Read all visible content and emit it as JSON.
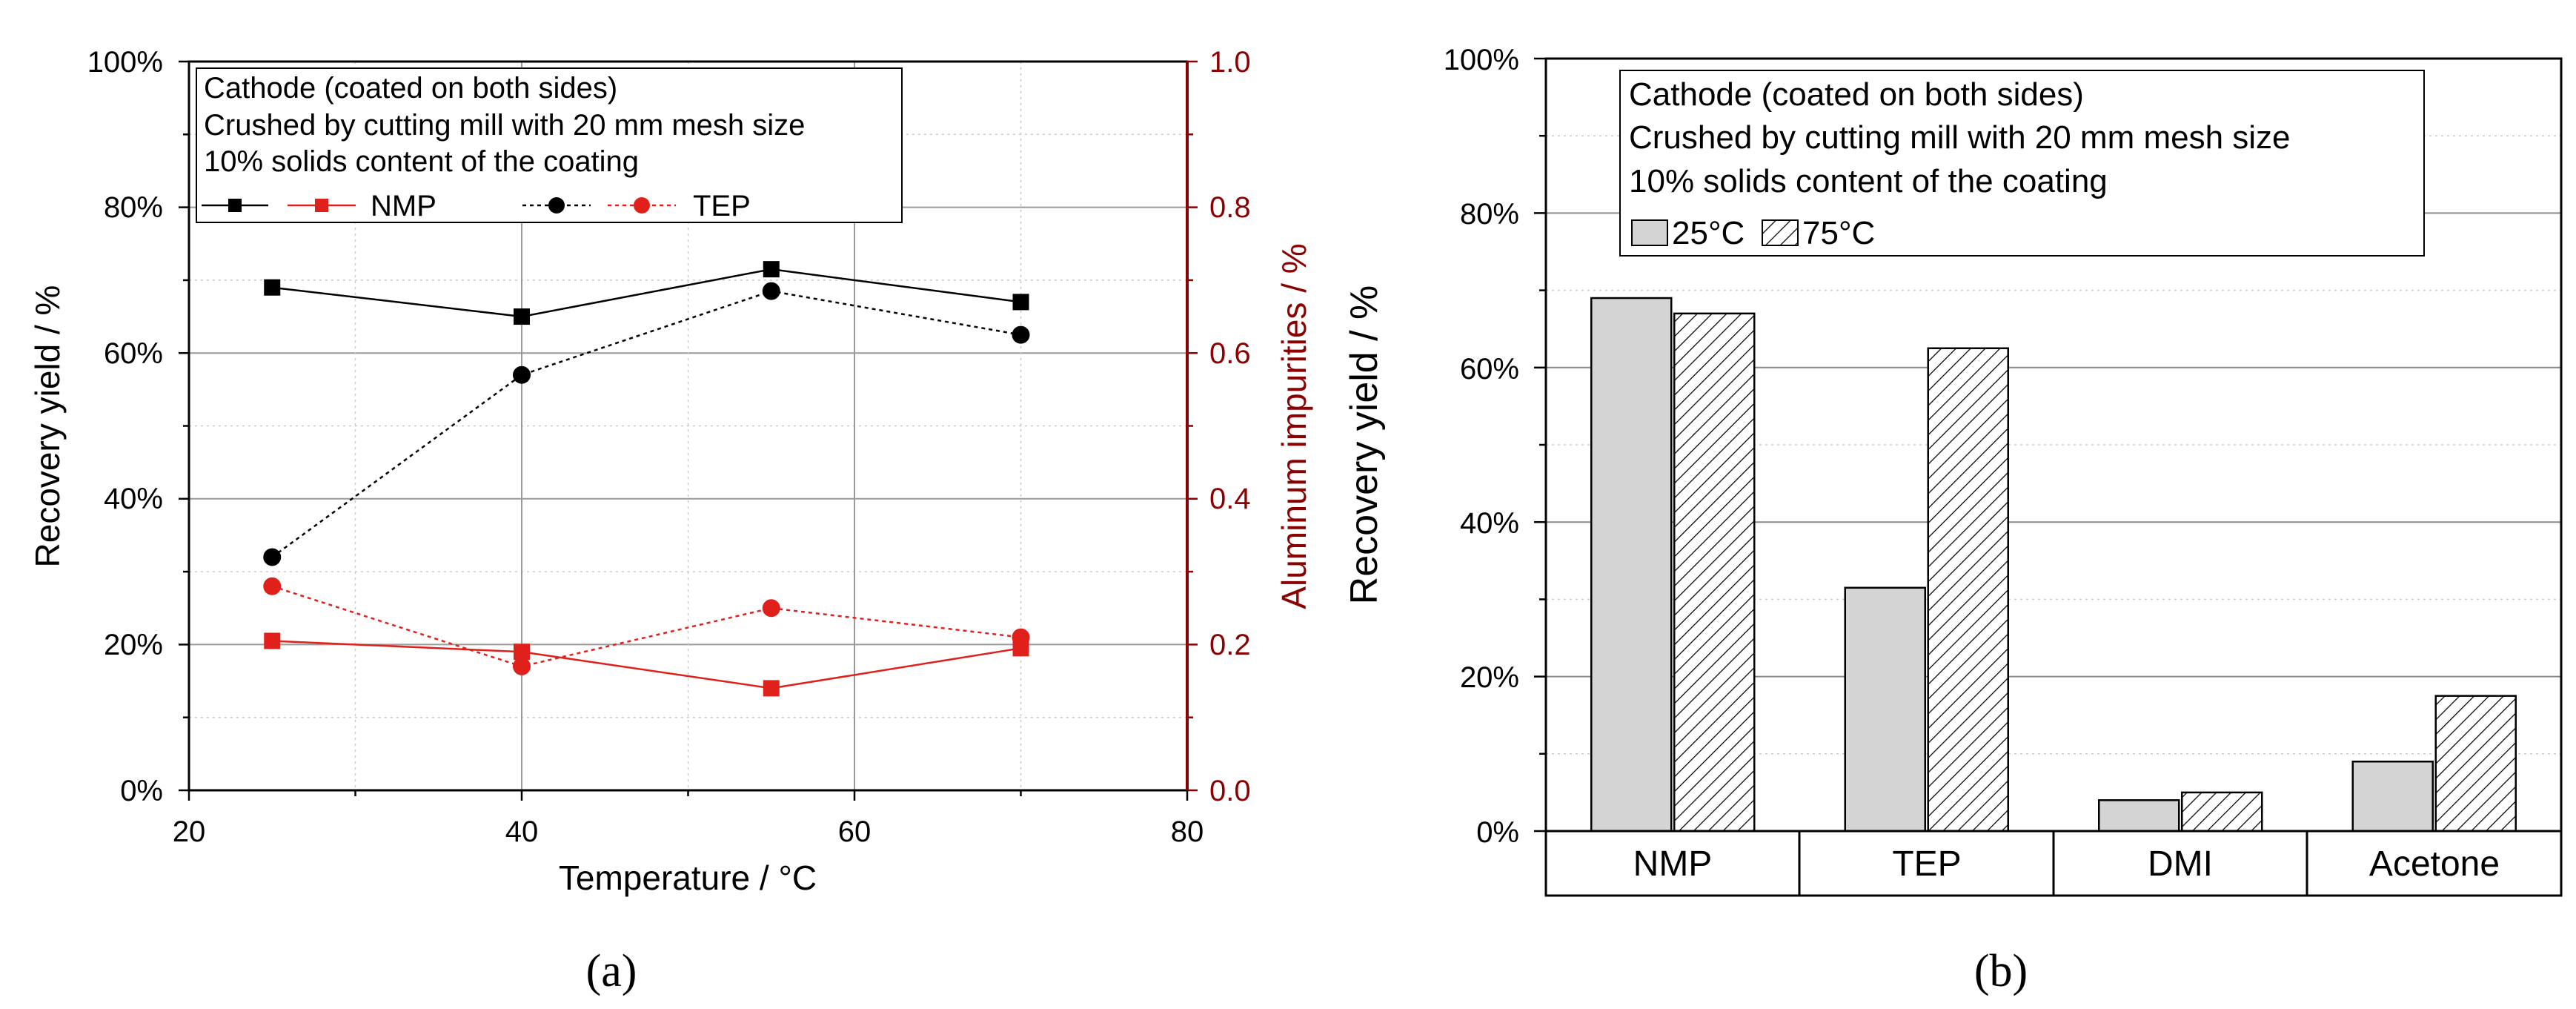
{
  "chart_data": [
    {
      "panel": "a",
      "type": "line",
      "panel_label": "(a)",
      "xlabel": "Temperature / °C",
      "ylabel": "Recovery yield / %",
      "ylabel_right": "Aluminum impurities / %",
      "xlim": [
        20,
        80
      ],
      "ylim": [
        0,
        100
      ],
      "ylim_right": [
        0,
        1.0
      ],
      "x_ticks": [
        "20",
        "40",
        "60",
        "80"
      ],
      "y_ticks": [
        "0%",
        "20%",
        "40%",
        "60%",
        "80%",
        "100%"
      ],
      "y_right_ticks": [
        "0.0",
        "0.2",
        "0.4",
        "0.6",
        "0.8",
        "1.0"
      ],
      "grid": true,
      "legend_placement": "top-left",
      "legend_lines": [
        "Cathode (coated on both sides)",
        "Crushed by cutting mill with 20 mm mesh size",
        "10% solids content of the coating"
      ],
      "legend_entries": [
        "NMP",
        "TEP"
      ],
      "colors": {
        "black": "#000000",
        "red": "#e0201b"
      },
      "series": [
        {
          "name": "NMP recovery yield",
          "axis": "left",
          "marker": "square",
          "color": "black",
          "dash": "solid",
          "x": [
            25,
            40,
            55,
            70
          ],
          "y": [
            69,
            65,
            71.5,
            67
          ]
        },
        {
          "name": "NMP aluminum impurities",
          "axis": "right",
          "marker": "square",
          "color": "red",
          "dash": "solid",
          "x": [
            25,
            40,
            55,
            70
          ],
          "y": [
            0.205,
            0.19,
            0.14,
            0.195
          ]
        },
        {
          "name": "TEP recovery yield",
          "axis": "left",
          "marker": "circle",
          "color": "black",
          "dash": "dotted",
          "x": [
            25,
            40,
            55,
            70
          ],
          "y": [
            32,
            57,
            68.5,
            62.5
          ]
        },
        {
          "name": "TEP aluminum impurities",
          "axis": "right",
          "marker": "circle",
          "color": "red",
          "dash": "dotted",
          "x": [
            25,
            40,
            55,
            70
          ],
          "y": [
            0.28,
            0.17,
            0.25,
            0.21
          ]
        }
      ]
    },
    {
      "panel": "b",
      "type": "bar",
      "panel_label": "(b)",
      "xlabel": "",
      "ylabel": "Recovery yield / %",
      "ylim": [
        0,
        100
      ],
      "y_ticks": [
        "0%",
        "20%",
        "40%",
        "60%",
        "80%",
        "100%"
      ],
      "grid": true,
      "legend_placement": "top-left",
      "legend_lines": [
        "Cathode (coated on both sides)",
        "Crushed by cutting mill with 20 mm mesh size",
        "10% solids content of the coating"
      ],
      "categories": [
        "NMP",
        "TEP",
        "DMI",
        "Acetone"
      ],
      "series": [
        {
          "name": "25°C",
          "fill": "solid",
          "color": "#d4d4d4",
          "values": [
            69,
            31.5,
            4,
            9
          ]
        },
        {
          "name": "75°C",
          "fill": "hatched",
          "color": "#ffffff",
          "values": [
            67,
            62.5,
            5,
            17.5
          ]
        }
      ]
    }
  ]
}
